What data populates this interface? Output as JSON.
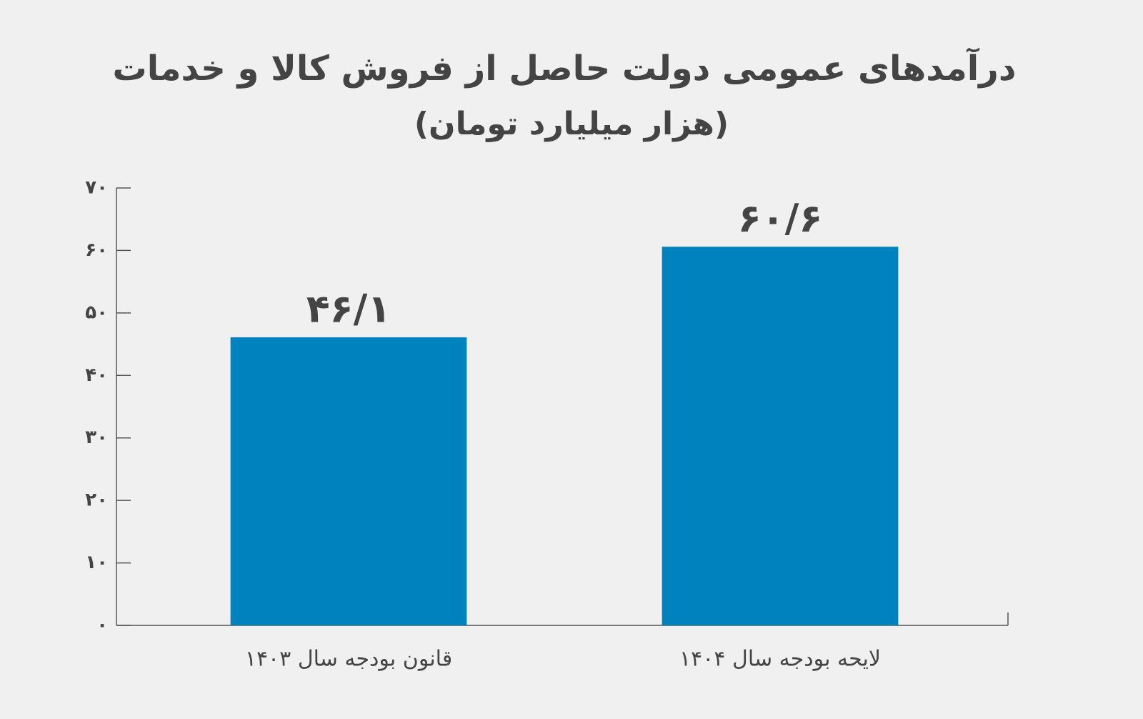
{
  "chart_data": {
    "type": "bar",
    "title": "درآمدهای عمومی دولت حاصل از فروش کالا و خدمات",
    "subtitle": "(هزار میلیارد تومان)",
    "categories": [
      "قانون بودجه سال ۱۴۰۳",
      "لایحه بودجه سال ۱۴۰۴"
    ],
    "values": [
      46.1,
      60.6
    ],
    "value_labels": [
      "۴۶/۱",
      "۶۰/۶"
    ],
    "color": "#0082be",
    "ylim": [
      0,
      70
    ],
    "yticks": [
      {
        "value": 0,
        "label": "۰"
      },
      {
        "value": 10,
        "label": "۱۰"
      },
      {
        "value": 20,
        "label": "۲۰"
      },
      {
        "value": 30,
        "label": "۳۰"
      },
      {
        "value": 40,
        "label": "۴۰"
      },
      {
        "value": 50,
        "label": "۵۰"
      },
      {
        "value": 60,
        "label": "۶۰"
      },
      {
        "value": 70,
        "label": "۷۰"
      }
    ],
    "grid": false
  }
}
